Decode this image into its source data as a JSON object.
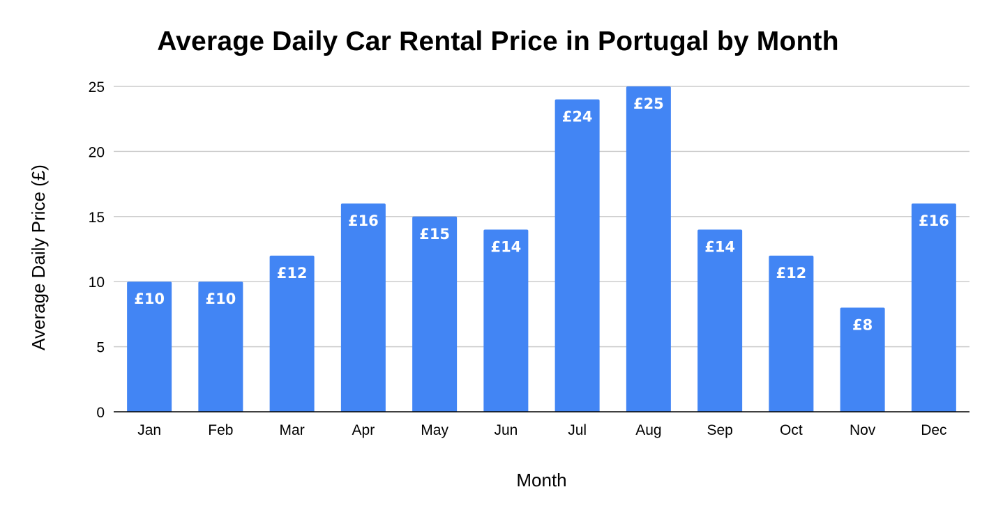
{
  "chart_data": {
    "type": "bar",
    "title": "Average Daily Car Rental Price in Portugal by Month",
    "xlabel": "Month",
    "ylabel": "Average Daily Price (£)",
    "categories": [
      "Jan",
      "Feb",
      "Mar",
      "Apr",
      "May",
      "Jun",
      "Jul",
      "Aug",
      "Sep",
      "Oct",
      "Nov",
      "Dec"
    ],
    "values": [
      10,
      10,
      12,
      16,
      15,
      14,
      24,
      25,
      14,
      12,
      8,
      16
    ],
    "data_labels": [
      "£10",
      "£10",
      "£12",
      "£16",
      "£15",
      "£14",
      "£24",
      "£25",
      "£14",
      "£12",
      "£8",
      "£16"
    ],
    "ylim": [
      0,
      25
    ],
    "yticks": [
      0,
      5,
      10,
      15,
      20,
      25
    ],
    "ytick_labels": [
      "0",
      "5",
      "10",
      "15",
      "20",
      "25"
    ],
    "grid": true,
    "legend": "none",
    "bar_color": "#4285f4",
    "grid_color": "#cccccc",
    "axis_color": "#000000"
  }
}
